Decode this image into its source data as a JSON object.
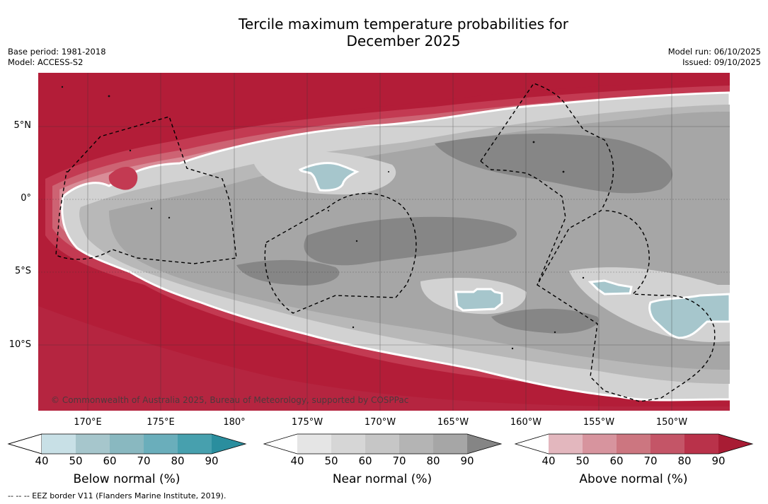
{
  "title": {
    "line1": "Tercile maximum temperature probabilities for",
    "line2": "December 2025"
  },
  "meta": {
    "base_period": "Base period: 1981-2018",
    "model": "Model: ACCESS-S2",
    "model_run": "Model run: 06/10/2025",
    "issued": "Issued: 09/10/2025"
  },
  "map": {
    "lat_labels": [
      "5°N",
      "0°",
      "5°S",
      "10°S"
    ],
    "lon_labels": [
      "170°E",
      "175°E",
      "180°",
      "175°W",
      "170°W",
      "165°W",
      "160°W",
      "155°W",
      "150°W"
    ],
    "copyright": "© Commonwealth of Australia 2025, Bureau of Meteorology, supported by COSPPac",
    "colors": {
      "above_dark": "#b31d38",
      "above_mid": "#c33a52",
      "above_light": "#d98c97",
      "near_light": "#d2d2d2",
      "near_mid": "#a6a6a6",
      "near_dark": "#868686",
      "below_light": "#a6c6cc",
      "below_mid": "#86b6bf"
    }
  },
  "colorbars": [
    {
      "title": "Below normal (%)",
      "ticks": [
        "40",
        "50",
        "60",
        "70",
        "80",
        "90"
      ],
      "colors": [
        "#c8e0e6",
        "#a6c6cc",
        "#89b8c0",
        "#6aaebb",
        "#47a0ae",
        "#2a8e9e"
      ]
    },
    {
      "title": "Near normal (%)",
      "ticks": [
        "40",
        "50",
        "60",
        "70",
        "80",
        "90"
      ],
      "colors": [
        "#e5e5e5",
        "#d6d6d6",
        "#c6c6c6",
        "#b4b4b4",
        "#a6a6a6",
        "#858585"
      ]
    },
    {
      "title": "Above normal (%)",
      "ticks": [
        "40",
        "50",
        "60",
        "70",
        "80",
        "90"
      ],
      "colors": [
        "#e3b7be",
        "#d7949e",
        "#cc7680",
        "#c45567",
        "#b9324a",
        "#a81c34"
      ]
    }
  ],
  "footnote": "-- -- -- EEZ border V11 (Flanders Marine Institute, 2019)."
}
